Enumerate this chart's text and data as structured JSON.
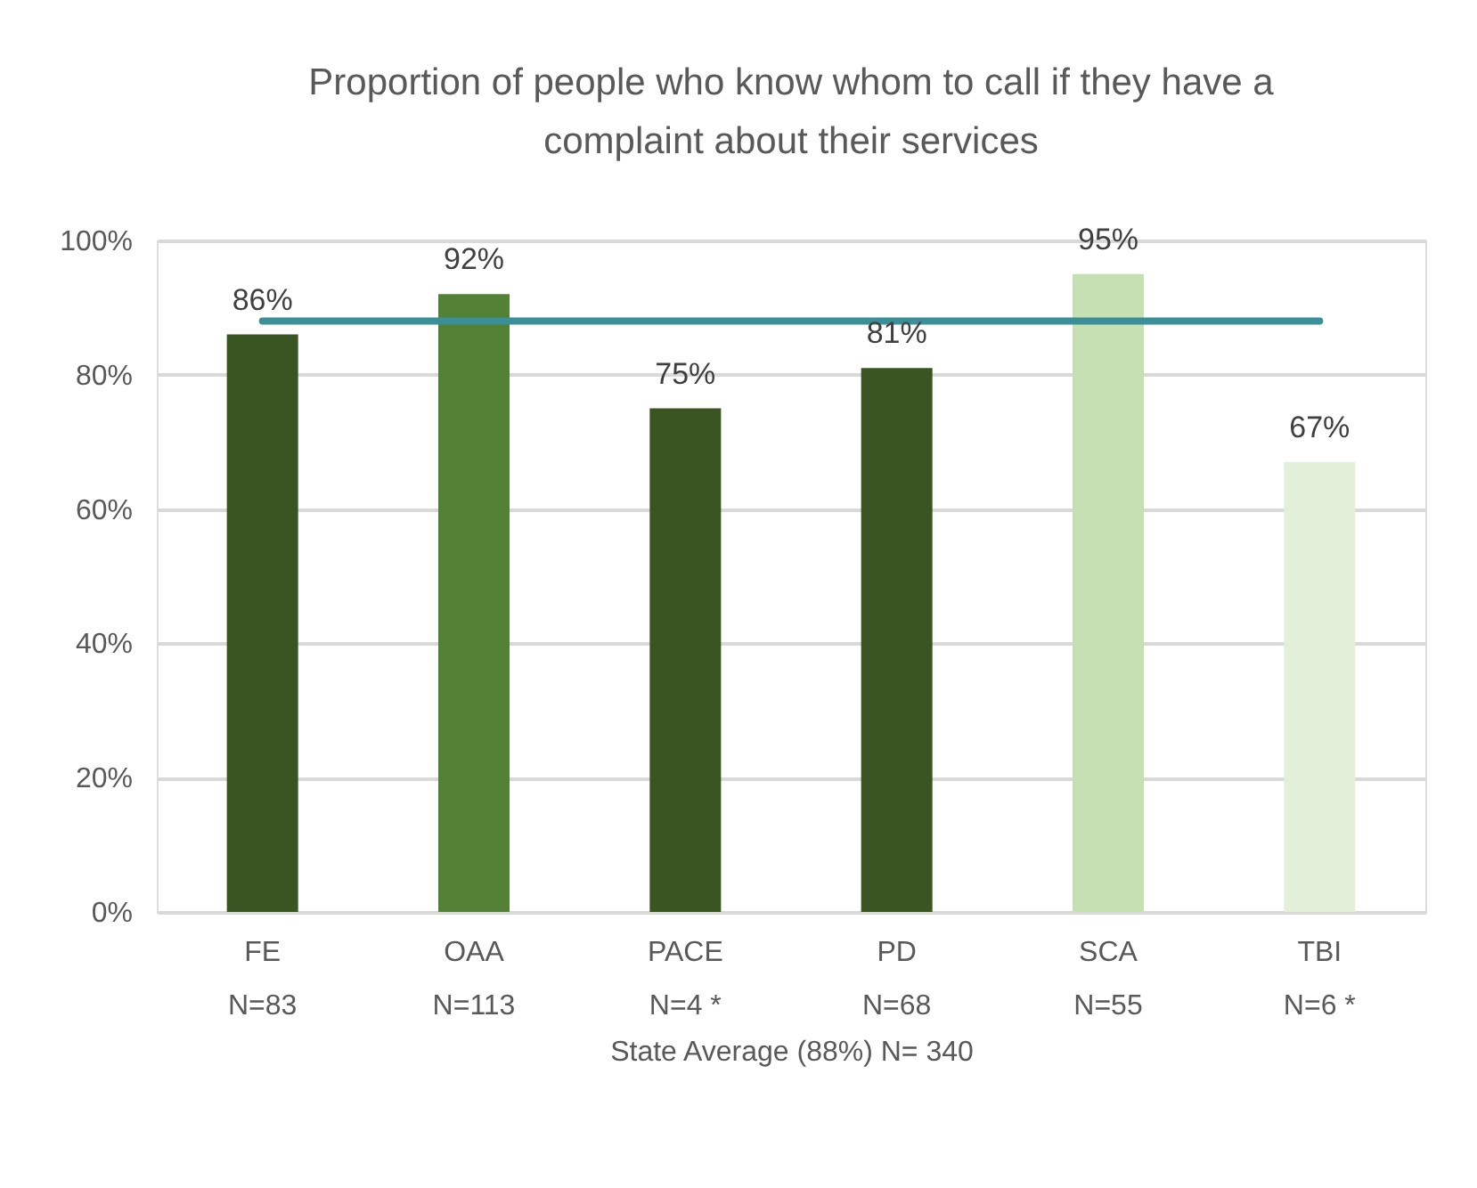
{
  "chart_data": {
    "type": "bar",
    "title": "Proportion of people who know whom to call if they have a\ncomplaint about their services",
    "categories": [
      "FE\nN=83",
      "OAA\nN=113",
      "PACE\nN=4 *",
      "PD\nN=68",
      "SCA\nN=55",
      "TBI\nN=6 *"
    ],
    "values": [
      86,
      92,
      75,
      81,
      95,
      67
    ],
    "value_labels": [
      "86%",
      "92%",
      "75%",
      "81%",
      "95%",
      "67%"
    ],
    "colors": [
      "#3a5522",
      "#538135",
      "#3a5522",
      "#3a5522",
      "#c6e0b4",
      "#e2efd9"
    ],
    "xlabel": "State Average (88%) N= 340",
    "ylim": [
      0,
      100
    ],
    "yticks": [
      {
        "value": 0,
        "label": "0%"
      },
      {
        "value": 20,
        "label": "20%"
      },
      {
        "value": 40,
        "label": "40%"
      },
      {
        "value": 60,
        "label": "60%"
      },
      {
        "value": 80,
        "label": "80%"
      },
      {
        "value": 100,
        "label": "100%"
      }
    ],
    "grid": "y",
    "ref_lines": [
      {
        "axis": "y",
        "value": 88,
        "color": "#3a8f98",
        "line_style": "solid"
      }
    ]
  }
}
